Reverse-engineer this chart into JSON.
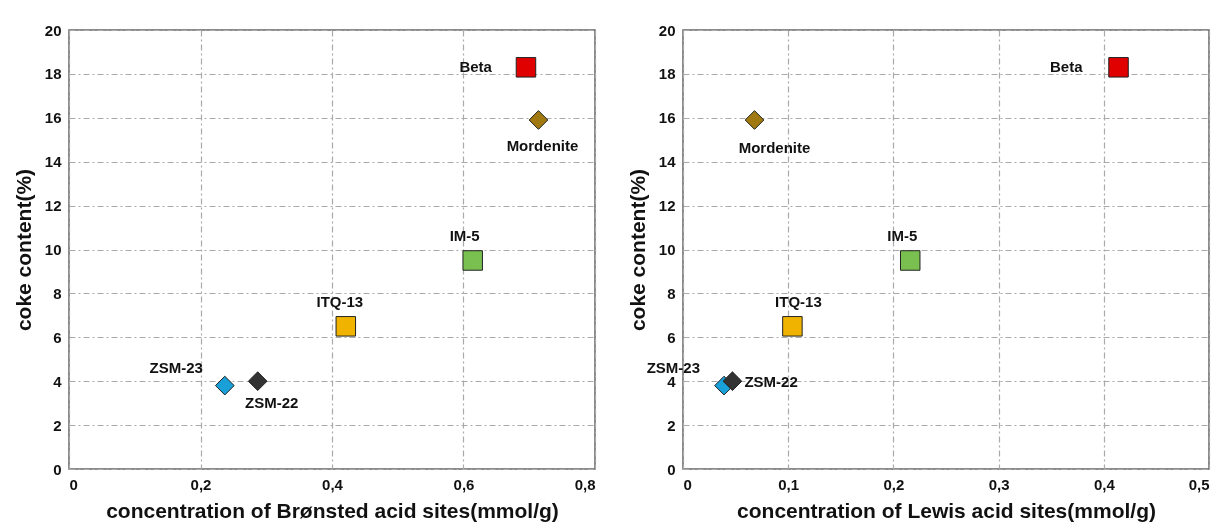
{
  "chart_data": [
    {
      "type": "scatter",
      "xlabel": "concentration of Brønsted acid sites(mmol/g)",
      "ylabel": "coke content(%)",
      "xlim": [
        0,
        0.8
      ],
      "xticks": [
        0,
        {
          "value": 0.2,
          "label": "0,2"
        },
        {
          "value": 0.4,
          "label": "0,4"
        },
        {
          "value": 0.6,
          "label": "0,6"
        },
        {
          "value": 0.8,
          "label": "0,8"
        }
      ],
      "ylim": [
        0,
        20
      ],
      "yticks": [
        0,
        2,
        4,
        6,
        8,
        10,
        12,
        14,
        16,
        18,
        20
      ],
      "grid": true,
      "series": [
        {
          "name": "ZSM-23",
          "color": "#1aa0d8",
          "marker": "diamond",
          "x": [
            0.237
          ],
          "values": [
            3.8
          ]
        },
        {
          "name": "ZSM-22",
          "color": "#333333",
          "marker": "diamond",
          "x": [
            0.287
          ],
          "values": [
            4.0
          ]
        },
        {
          "name": "ITQ-13",
          "color": "#f0b400",
          "marker": "square",
          "x": [
            0.421
          ],
          "values": [
            6.5
          ]
        },
        {
          "name": "IM-5",
          "color": "#7ac050",
          "marker": "square",
          "x": [
            0.614
          ],
          "values": [
            9.5
          ]
        },
        {
          "name": "Mordenite",
          "color": "#a07a10",
          "marker": "diamond",
          "x": [
            0.714
          ],
          "values": [
            15.9
          ]
        },
        {
          "name": "Beta",
          "color": "#e00000",
          "marker": "square",
          "x": [
            0.695
          ],
          "values": [
            18.3
          ]
        }
      ]
    },
    {
      "type": "scatter",
      "xlabel": "concentration of Lewis acid sites(mmol/g)",
      "ylabel": "coke content(%)",
      "xlim": [
        0,
        0.5
      ],
      "xticks": [
        0,
        {
          "value": 0.1,
          "label": "0,1"
        },
        {
          "value": 0.2,
          "label": "0,2"
        },
        {
          "value": 0.3,
          "label": "0,3"
        },
        {
          "value": 0.4,
          "label": "0,4"
        },
        {
          "value": 0.5,
          "label": "0,5"
        }
      ],
      "ylim": [
        0,
        20
      ],
      "yticks": [
        0,
        2,
        4,
        6,
        8,
        10,
        12,
        14,
        16,
        18,
        20
      ],
      "grid": true,
      "series": [
        {
          "name": "ZSM-23",
          "color": "#1aa0d8",
          "marker": "diamond",
          "x": [
            0.039
          ],
          "values": [
            3.8
          ]
        },
        {
          "name": "ZSM-22",
          "color": "#333333",
          "marker": "diamond",
          "x": [
            0.047
          ],
          "values": [
            4.0
          ]
        },
        {
          "name": "ITQ-13",
          "color": "#f0b400",
          "marker": "square",
          "x": [
            0.104
          ],
          "values": [
            6.5
          ]
        },
        {
          "name": "IM-5",
          "color": "#7ac050",
          "marker": "square",
          "x": [
            0.216
          ],
          "values": [
            9.5
          ]
        },
        {
          "name": "Mordenite",
          "color": "#a07a10",
          "marker": "diamond",
          "x": [
            0.068
          ],
          "values": [
            15.9
          ]
        },
        {
          "name": "Beta",
          "color": "#e00000",
          "marker": "square",
          "x": [
            0.414
          ],
          "values": [
            18.3
          ]
        }
      ]
    }
  ]
}
